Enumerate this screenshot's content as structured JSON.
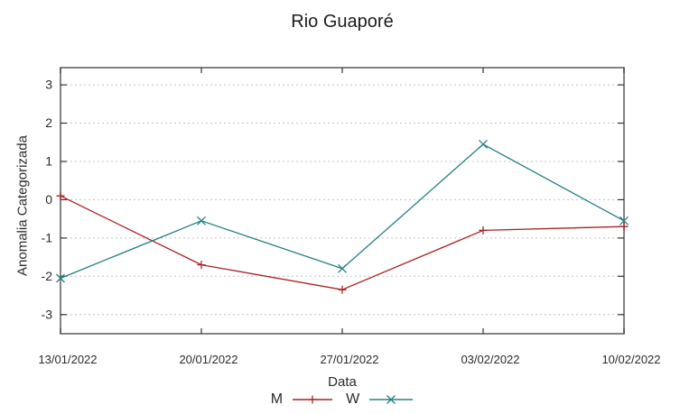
{
  "title": "Rio Guaporé",
  "chart_data": {
    "type": "line",
    "title": "Rio Guaporé",
    "xlabel": "Data",
    "ylabel": "Anomalia Categorizada",
    "categories": [
      "13/01/2022",
      "20/01/2022",
      "27/01/2022",
      "03/02/2022",
      "10/02/2022"
    ],
    "series": [
      {
        "name": "M",
        "marker": "plus",
        "color": "#aa2222",
        "values": [
          0.1,
          -1.7,
          -2.35,
          -0.8,
          -0.7
        ]
      },
      {
        "name": "W",
        "marker": "cross",
        "color": "#268080",
        "values": [
          -2.05,
          -0.55,
          -1.8,
          1.45,
          -0.55
        ]
      }
    ],
    "yticks": [
      3,
      2,
      1,
      0,
      -1,
      -2,
      -3
    ],
    "ylim": [
      -3.5,
      3.45
    ],
    "grid": "horizontal dotted",
    "legend_position": "bottom-center"
  },
  "colors": {
    "background": "#ffffff",
    "grid": "#c4c4c4",
    "border": "#5a5a5a",
    "tick": "#333333",
    "text": "#2b2b2b",
    "title": "#1c1c1c"
  }
}
